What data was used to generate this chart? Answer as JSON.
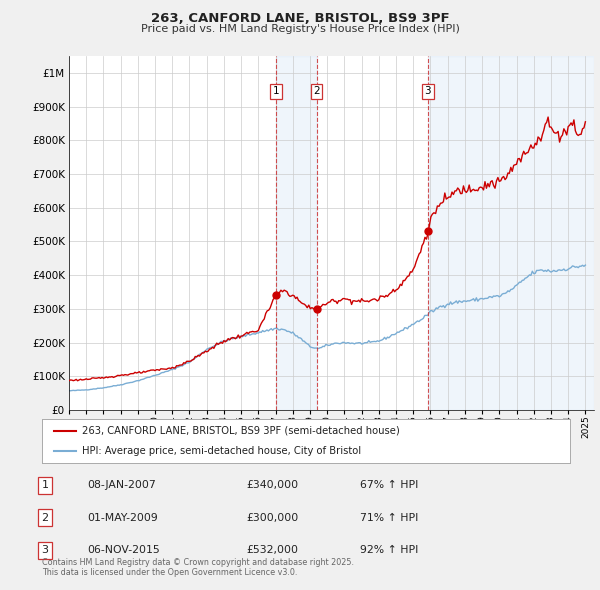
{
  "title": "263, CANFORD LANE, BRISTOL, BS9 3PF",
  "subtitle": "Price paid vs. HM Land Registry's House Price Index (HPI)",
  "xlim": [
    1995.0,
    2025.5
  ],
  "ylim": [
    0,
    1050000
  ],
  "yticks": [
    0,
    100000,
    200000,
    300000,
    400000,
    500000,
    600000,
    700000,
    800000,
    900000,
    1000000
  ],
  "transactions": [
    {
      "num": 1,
      "date": "08-JAN-2007",
      "year": 2007.03,
      "price": 340000,
      "hpi_pct": "67%"
    },
    {
      "num": 2,
      "date": "01-MAY-2009",
      "year": 2009.38,
      "price": 300000,
      "hpi_pct": "71%"
    },
    {
      "num": 3,
      "date": "06-NOV-2015",
      "year": 2015.85,
      "price": 532000,
      "hpi_pct": "92%"
    }
  ],
  "property_color": "#cc0000",
  "hpi_color": "#7aadd4",
  "shade_color": "#ddeeff",
  "background_color": "#f0f0f0",
  "plot_bg_color": "#ffffff",
  "grid_color": "#cccccc",
  "legend_label_property": "263, CANFORD LANE, BRISTOL, BS9 3PF (semi-detached house)",
  "legend_label_hpi": "HPI: Average price, semi-detached house, City of Bristol",
  "footer": "Contains HM Land Registry data © Crown copyright and database right 2025.\nThis data is licensed under the Open Government Licence v3.0."
}
